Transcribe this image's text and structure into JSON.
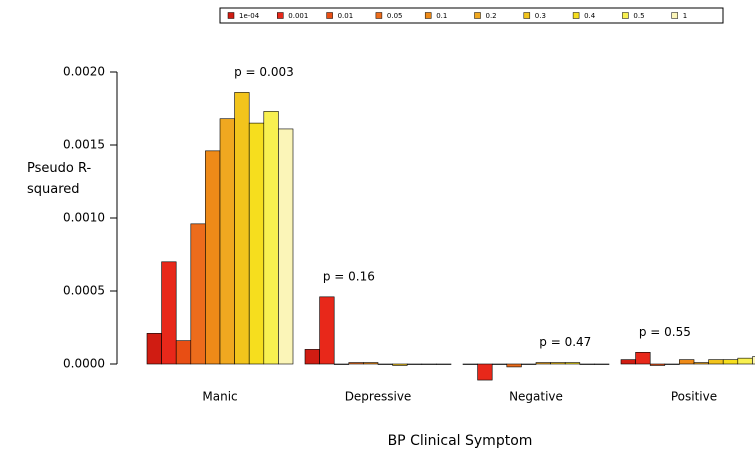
{
  "chart_data": {
    "type": "bar",
    "ylabel": "Pseudo R-squared",
    "xlabel": "BP Clinical Symptom",
    "categories": [
      "Manic",
      "Depressive",
      "Negative",
      "Positive"
    ],
    "series": [
      {
        "name": "1e-04",
        "color": "#d01c12",
        "values": [
          0.00021,
          0.0001,
          0.0,
          3e-05
        ]
      },
      {
        "name": "0.001",
        "color": "#e8281a",
        "values": [
          0.0007,
          0.00046,
          -0.00011,
          8e-05
        ]
      },
      {
        "name": "0.01",
        "color": "#e84e14",
        "values": [
          0.00016,
          0.0,
          0.0,
          -1e-05
        ]
      },
      {
        "name": "0.05",
        "color": "#ec6c1c",
        "values": [
          0.00096,
          1e-05,
          -2e-05,
          0.0
        ]
      },
      {
        "name": "0.1",
        "color": "#ee8a18",
        "values": [
          0.00146,
          1e-05,
          0.0,
          3e-05
        ]
      },
      {
        "name": "0.2",
        "color": "#f0a820",
        "values": [
          0.00168,
          0.0,
          1e-05,
          1e-05
        ]
      },
      {
        "name": "0.3",
        "color": "#f2c41c",
        "values": [
          0.00186,
          -1e-05,
          1e-05,
          3e-05
        ]
      },
      {
        "name": "0.4",
        "color": "#f6de1e",
        "values": [
          0.00165,
          0.0,
          1e-05,
          3e-05
        ]
      },
      {
        "name": "0.5",
        "color": "#f8f050",
        "values": [
          0.00173,
          0.0,
          0.0,
          4e-05
        ]
      },
      {
        "name": "1",
        "color": "#fbf5b8",
        "values": [
          0.00161,
          0.0,
          0.0,
          5e-05
        ]
      }
    ],
    "annotations": [
      {
        "text": "p = 0.003",
        "category": 0
      },
      {
        "text": "p = 0.16",
        "category": 1
      },
      {
        "text": "p = 0.47",
        "category": 2
      },
      {
        "text": "p = 0.55",
        "category": 3
      }
    ],
    "ylim": [
      -0.00015,
      0.00225
    ],
    "yticks": [
      {
        "value": 0,
        "label": "0.0000"
      },
      {
        "value": 0.0005,
        "label": "0.0005"
      },
      {
        "value": 0.001,
        "label": "0.0010"
      },
      {
        "value": 0.0015,
        "label": "0.0015"
      },
      {
        "value": 0.002,
        "label": "0.0020"
      }
    ],
    "legend": "top"
  }
}
